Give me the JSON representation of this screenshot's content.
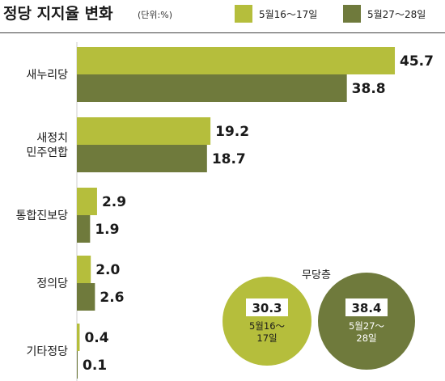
{
  "chart_data": {
    "type": "bar",
    "orientation": "horizontal",
    "title": "정당 지지율 변화",
    "unit": "(단위:%)",
    "categories": [
      [
        "새누리당"
      ],
      [
        "새정치",
        "민주연합"
      ],
      [
        "통합진보당"
      ],
      [
        "정의당"
      ],
      [
        "기타정당"
      ]
    ],
    "series": [
      {
        "name": "5월16～17일",
        "color": "#b5be3c",
        "values": [
          45.7,
          19.2,
          2.9,
          2.0,
          0.4
        ]
      },
      {
        "name": "5월27～28일",
        "color": "#6f7a3c",
        "values": [
          38.8,
          18.7,
          1.9,
          2.6,
          0.1
        ]
      }
    ],
    "value_labels": [
      [
        "45.7",
        "19.2",
        "2.9",
        "2.0",
        "0.4"
      ],
      [
        "38.8",
        "18.7",
        "1.9",
        "2.6",
        "0.1"
      ]
    ],
    "xlim": [
      0,
      50
    ],
    "grid": false,
    "legend_position": "top-right",
    "undecided": {
      "label": "무당층",
      "items": [
        {
          "value": "30.3",
          "date_lines": [
            "5월16～",
            "17일"
          ],
          "color": "#b5be3c"
        },
        {
          "value": "38.4",
          "date_lines": [
            "5월27～",
            "28일"
          ],
          "color": "#6f7a3c"
        }
      ]
    }
  }
}
